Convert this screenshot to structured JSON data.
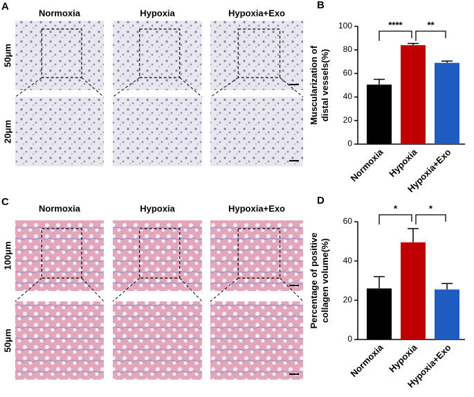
{
  "figure_panels": [
    {
      "letter": "A",
      "columns": [
        "Normoxia",
        "Hypoxia",
        "Hypoxia+Exo"
      ],
      "rows": [
        "50μm",
        "20μm"
      ]
    },
    {
      "letter": "C",
      "columns": [
        "Normoxia",
        "Hypoxia",
        "Hypoxia+Exo"
      ],
      "rows": [
        "100μm",
        "50μm"
      ]
    }
  ],
  "chart_data": [
    {
      "type": "bar",
      "panel": "B",
      "ylabel": "Muscularization of distal vessels(%)",
      "categories": [
        "Normoxia",
        "Hypoxia",
        "Hypoxia+Exo"
      ],
      "values": [
        50.5,
        84,
        69
      ],
      "errors": [
        4.5,
        1.5,
        1.5
      ],
      "colors": [
        "#000000",
        "#c00000",
        "#1f5cbf"
      ],
      "ylim": [
        0,
        100
      ],
      "yticks": [
        0,
        20,
        40,
        60,
        80,
        100
      ],
      "annotations": [
        "****",
        "**"
      ]
    },
    {
      "type": "bar",
      "panel": "D",
      "ylabel": "Percentage of positive collagen volume(%)",
      "categories": [
        "Normoxia",
        "Hypoxia",
        "Hypoxia+Exo"
      ],
      "values": [
        26,
        49.5,
        25.5
      ],
      "errors": [
        6,
        7,
        3
      ],
      "colors": [
        "#000000",
        "#c00000",
        "#1f5cbf"
      ],
      "ylim": [
        0,
        60
      ],
      "yticks": [
        0,
        20,
        40,
        60
      ],
      "annotations": [
        "*",
        "*"
      ]
    }
  ]
}
